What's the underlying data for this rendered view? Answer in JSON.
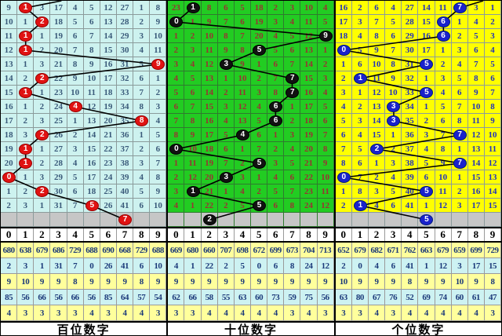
{
  "chart_data": {
    "type": "table",
    "digit_headers": [
      "0",
      "1",
      "2",
      "3",
      "4",
      "5",
      "6",
      "7",
      "8",
      "9"
    ],
    "panels": [
      {
        "footer": "百位数字",
        "stub_pct": 36.6,
        "rows": [
          {
            "cells": [
              "9",
              "1",
              "3",
              "17",
              "4",
              "5",
              "12",
              "27",
              "1",
              "8"
            ],
            "circle": 1
          },
          {
            "cells": [
              "10",
              "1",
              "2",
              "18",
              "5",
              "6",
              "13",
              "28",
              "2",
              "9"
            ],
            "circle": 2
          },
          {
            "cells": [
              "11",
              "1",
              "1",
              "19",
              "6",
              "7",
              "14",
              "29",
              "3",
              "10"
            ],
            "circle": 1
          },
          {
            "cells": [
              "12",
              "1",
              "2",
              "20",
              "7",
              "8",
              "15",
              "30",
              "4",
              "11"
            ],
            "circle": 1
          },
          {
            "cells": [
              "13",
              "1",
              "3",
              "21",
              "8",
              "9",
              "16",
              "31",
              "5",
              "9"
            ],
            "circle": 9
          },
          {
            "cells": [
              "14",
              "2",
              "2",
              "22",
              "9",
              "10",
              "17",
              "32",
              "6",
              "1"
            ],
            "circle": 2
          },
          {
            "cells": [
              "15",
              "1",
              "1",
              "23",
              "10",
              "11",
              "18",
              "33",
              "7",
              "2"
            ],
            "circle": 1
          },
          {
            "cells": [
              "16",
              "1",
              "2",
              "24",
              "4",
              "12",
              "19",
              "34",
              "8",
              "3"
            ],
            "circle": 4
          },
          {
            "cells": [
              "17",
              "2",
              "3",
              "25",
              "1",
              "13",
              "20",
              "35",
              "8",
              "4"
            ],
            "circle": 8
          },
          {
            "cells": [
              "18",
              "3",
              "2",
              "26",
              "2",
              "14",
              "21",
              "36",
              "1",
              "5"
            ],
            "circle": 2
          },
          {
            "cells": [
              "19",
              "1",
              "1",
              "27",
              "3",
              "15",
              "22",
              "37",
              "2",
              "6"
            ],
            "circle": 1
          },
          {
            "cells": [
              "20",
              "1",
              "2",
              "28",
              "4",
              "16",
              "23",
              "38",
              "3",
              "7"
            ],
            "circle": 1
          },
          {
            "cells": [
              "0",
              "1",
              "3",
              "29",
              "5",
              "17",
              "24",
              "39",
              "4",
              "8"
            ],
            "circle": 0
          },
          {
            "cells": [
              "1",
              "2",
              "2",
              "30",
              "6",
              "18",
              "25",
              "40",
              "5",
              "9"
            ],
            "circle": 2
          },
          {
            "cells": [
              "2",
              "3",
              "1",
              "31",
              "7",
              "5",
              "26",
              "41",
              "6",
              "10"
            ],
            "circle": 5
          }
        ],
        "gray_circle": 7,
        "stats": [
          [
            "680",
            "638",
            "679",
            "686",
            "729",
            "688",
            "690",
            "668",
            "729",
            "688"
          ],
          [
            "2",
            "3",
            "1",
            "31",
            "7",
            "0",
            "26",
            "41",
            "6",
            "10"
          ],
          [
            "9",
            "10",
            "9",
            "9",
            "8",
            "9",
            "9",
            "9",
            "8",
            "9"
          ],
          [
            "85",
            "56",
            "66",
            "56",
            "66",
            "56",
            "85",
            "64",
            "57",
            "54"
          ],
          [
            "4",
            "3",
            "3",
            "3",
            "3",
            "4",
            "3",
            "4",
            "4",
            "3"
          ]
        ]
      },
      {
        "footer": "十位数字",
        "stub_pct": null,
        "rows": [
          {
            "cells": [
              "23",
              "1",
              "8",
              "6",
              "5",
              "18",
              "2",
              "3",
              "10",
              "4"
            ],
            "circle": 1
          },
          {
            "cells": [
              "0",
              "1",
              "9",
              "7",
              "6",
              "19",
              "3",
              "4",
              "11",
              "5"
            ],
            "circle": 0
          },
          {
            "cells": [
              "1",
              "2",
              "10",
              "8",
              "7",
              "20",
              "4",
              "5",
              "12",
              "9"
            ],
            "circle": 9
          },
          {
            "cells": [
              "2",
              "3",
              "11",
              "9",
              "8",
              "5",
              "5",
              "6",
              "13",
              "1"
            ],
            "circle": 5
          },
          {
            "cells": [
              "3",
              "4",
              "12",
              "3",
              "9",
              "1",
              "6",
              "7",
              "14",
              "2"
            ],
            "circle": 3
          },
          {
            "cells": [
              "4",
              "5",
              "13",
              "1",
              "10",
              "2",
              "7",
              "7",
              "15",
              "3"
            ],
            "circle": 7
          },
          {
            "cells": [
              "5",
              "6",
              "14",
              "2",
              "11",
              "3",
              "8",
              "7",
              "16",
              "4"
            ],
            "circle": 7
          },
          {
            "cells": [
              "6",
              "7",
              "15",
              "3",
              "12",
              "4",
              "6",
              "1",
              "17",
              "5"
            ],
            "circle": 6
          },
          {
            "cells": [
              "7",
              "8",
              "16",
              "4",
              "13",
              "5",
              "6",
              "2",
              "18",
              "6"
            ],
            "circle": 6
          },
          {
            "cells": [
              "8",
              "9",
              "17",
              "5",
              "4",
              "6",
              "1",
              "3",
              "19",
              "7"
            ],
            "circle": 4
          },
          {
            "cells": [
              "0",
              "10",
              "18",
              "6",
              "1",
              "7",
              "2",
              "4",
              "20",
              "8"
            ],
            "circle": 0
          },
          {
            "cells": [
              "1",
              "11",
              "19",
              "7",
              "2",
              "5",
              "3",
              "5",
              "21",
              "9"
            ],
            "circle": 5
          },
          {
            "cells": [
              "2",
              "12",
              "20",
              "3",
              "3",
              "1",
              "4",
              "6",
              "22",
              "10"
            ],
            "circle": 3
          },
          {
            "cells": [
              "3",
              "1",
              "21",
              "1",
              "4",
              "2",
              "5",
              "7",
              "23",
              "11"
            ],
            "circle": 1
          },
          {
            "cells": [
              "4",
              "1",
              "22",
              "2",
              "5",
              "5",
              "6",
              "8",
              "24",
              "12"
            ],
            "circle": 5
          }
        ],
        "gray_circle": 2,
        "stats": [
          [
            "669",
            "680",
            "660",
            "707",
            "698",
            "672",
            "699",
            "673",
            "704",
            "713"
          ],
          [
            "4",
            "1",
            "22",
            "2",
            "5",
            "0",
            "6",
            "8",
            "24",
            "12"
          ],
          [
            "9",
            "9",
            "9",
            "9",
            "9",
            "9",
            "9",
            "9",
            "9",
            "9"
          ],
          [
            "62",
            "66",
            "58",
            "55",
            "63",
            "60",
            "73",
            "59",
            "75",
            "56"
          ],
          [
            "3",
            "3",
            "4",
            "4",
            "4",
            "4",
            "4",
            "3",
            "4",
            "3"
          ]
        ]
      },
      {
        "footer": "个位数字",
        "stub_pct": 89,
        "rows": [
          {
            "cells": [
              "16",
              "2",
              "6",
              "4",
              "27",
              "14",
              "11",
              "7",
              "3",
              "1"
            ],
            "circle": 7
          },
          {
            "cells": [
              "17",
              "3",
              "7",
              "5",
              "28",
              "15",
              "6",
              "1",
              "4",
              "2"
            ],
            "circle": 6
          },
          {
            "cells": [
              "18",
              "4",
              "8",
              "6",
              "29",
              "16",
              "6",
              "2",
              "5",
              "3"
            ],
            "circle": 6
          },
          {
            "cells": [
              "0",
              "5",
              "9",
              "7",
              "30",
              "17",
              "1",
              "3",
              "6",
              "4"
            ],
            "circle": 0
          },
          {
            "cells": [
              "1",
              "6",
              "10",
              "8",
              "31",
              "5",
              "2",
              "4",
              "7",
              "5"
            ],
            "circle": 5
          },
          {
            "cells": [
              "2",
              "1",
              "11",
              "9",
              "32",
              "1",
              "3",
              "5",
              "8",
              "6"
            ],
            "circle": 1
          },
          {
            "cells": [
              "3",
              "1",
              "12",
              "10",
              "33",
              "5",
              "4",
              "6",
              "9",
              "7"
            ],
            "circle": 5
          },
          {
            "cells": [
              "4",
              "2",
              "13",
              "3",
              "34",
              "1",
              "5",
              "7",
              "10",
              "8"
            ],
            "circle": 3
          },
          {
            "cells": [
              "5",
              "3",
              "14",
              "3",
              "35",
              "2",
              "6",
              "8",
              "11",
              "9"
            ],
            "circle": 3
          },
          {
            "cells": [
              "6",
              "4",
              "15",
              "1",
              "36",
              "3",
              "7",
              "7",
              "12",
              "10"
            ],
            "circle": 7
          },
          {
            "cells": [
              "7",
              "5",
              "2",
              "2",
              "37",
              "4",
              "8",
              "1",
              "13",
              "11"
            ],
            "circle": 2
          },
          {
            "cells": [
              "8",
              "6",
              "1",
              "3",
              "38",
              "5",
              "9",
              "7",
              "14",
              "12"
            ],
            "circle": 7
          },
          {
            "cells": [
              "0",
              "7",
              "2",
              "4",
              "39",
              "6",
              "10",
              "1",
              "15",
              "13"
            ],
            "circle": 0
          },
          {
            "cells": [
              "1",
              "8",
              "3",
              "5",
              "40",
              "5",
              "11",
              "2",
              "16",
              "14"
            ],
            "circle": 5
          },
          {
            "cells": [
              "2",
              "1",
              "4",
              "6",
              "41",
              "1",
              "12",
              "3",
              "17",
              "15"
            ],
            "circle": 1
          }
        ],
        "gray_circle": 5,
        "stats": [
          [
            "652",
            "679",
            "682",
            "671",
            "762",
            "663",
            "679",
            "659",
            "699",
            "729"
          ],
          [
            "2",
            "0",
            "4",
            "6",
            "41",
            "1",
            "12",
            "3",
            "17",
            "15"
          ],
          [
            "10",
            "9",
            "9",
            "9",
            "8",
            "9",
            "9",
            "10",
            "9",
            "8"
          ],
          [
            "63",
            "80",
            "67",
            "76",
            "52",
            "69",
            "74",
            "60",
            "61",
            "47"
          ],
          [
            "3",
            "3",
            "4",
            "3",
            "4",
            "4",
            "4",
            "4",
            "4",
            "3"
          ]
        ]
      }
    ]
  },
  "colors": {
    "panel_bg": [
      "#cdf2ef",
      "#22cc22",
      "#ffff00"
    ],
    "panel_text": [
      "#3a5a7a",
      "#993333",
      "#2233bb"
    ],
    "circle_bg": [
      "#e01212",
      "#111111",
      "#1a22cc"
    ],
    "circle_border": [
      "#990000",
      "#000000",
      "#001a80"
    ],
    "gray_row": "#c6c6c6",
    "stat_yellow": "#ffff9c",
    "stat_cyan": "#cdf2f2",
    "stat_text": "#1c3a7a",
    "line": "#000000"
  }
}
